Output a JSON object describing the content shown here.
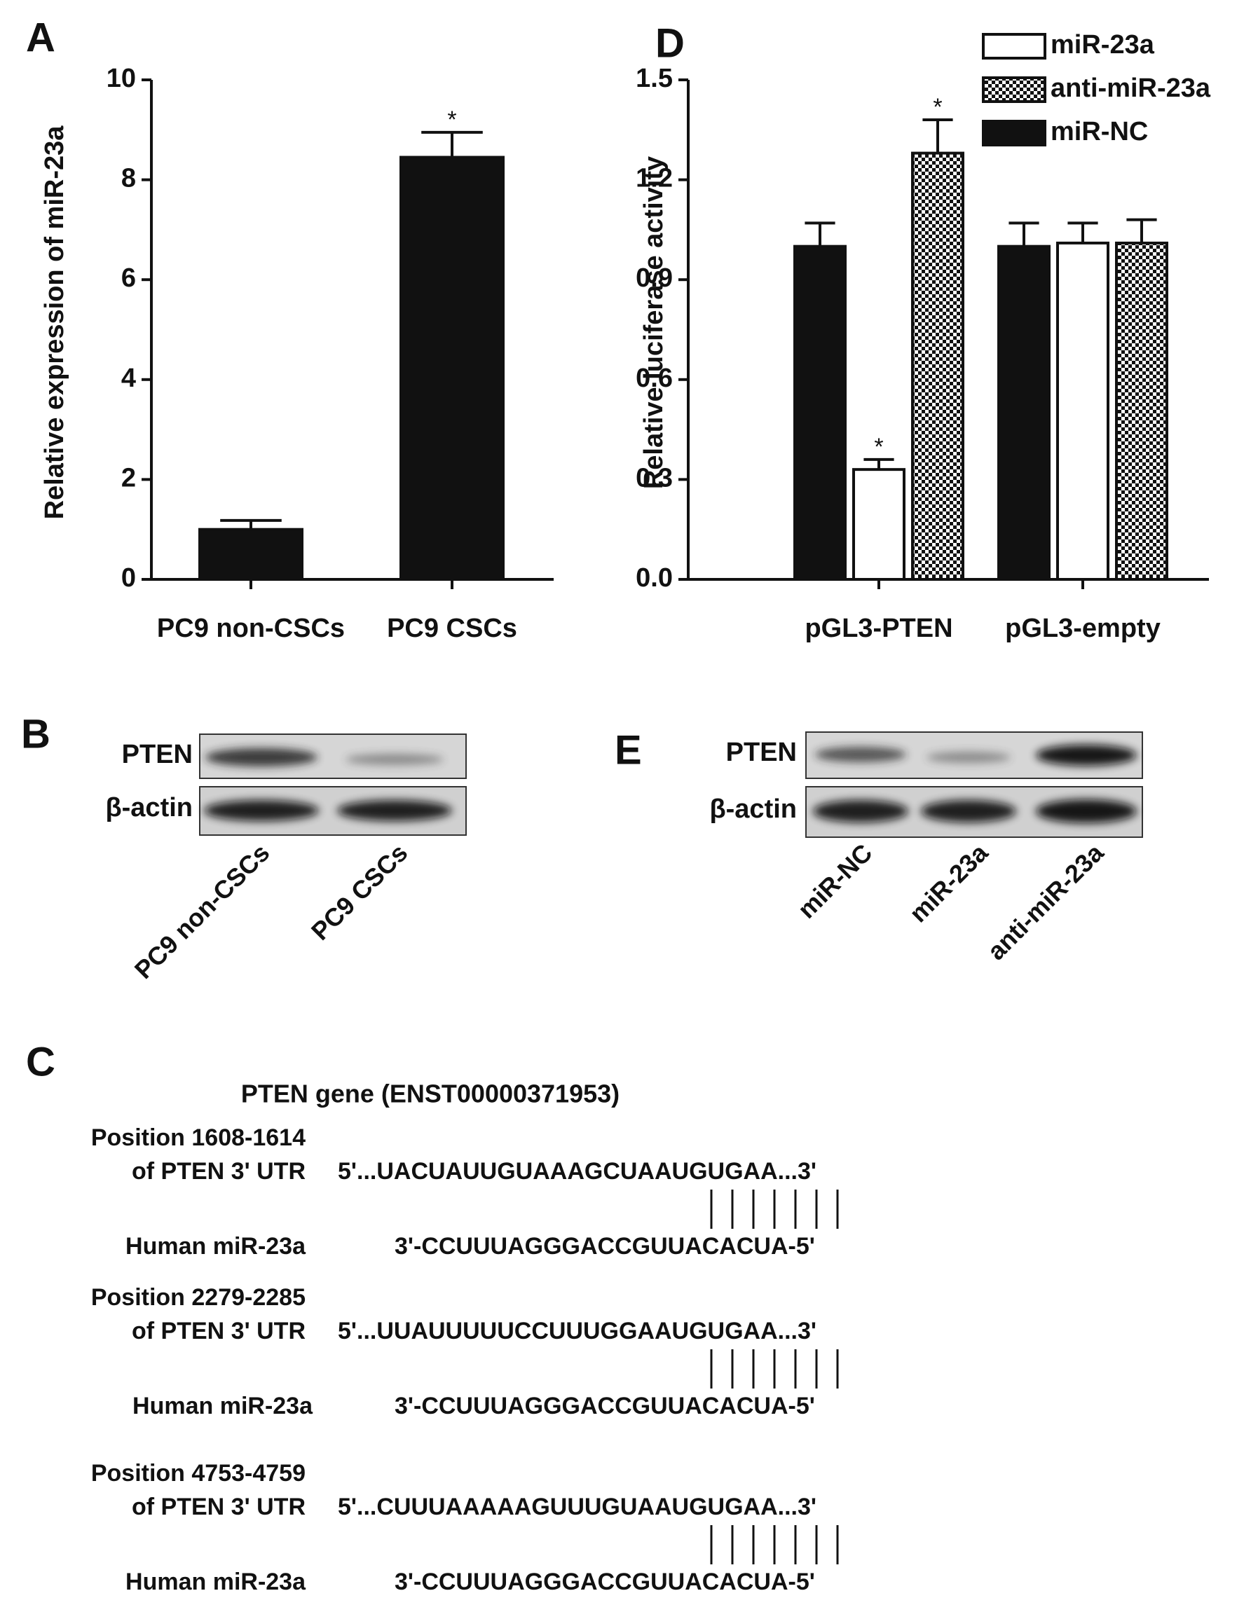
{
  "chart_data": [
    {
      "type": "bar",
      "panel": "A",
      "ylabel": "Relative expression of miR-23a",
      "categories": [
        "PC9 non-CSCs",
        "PC9 CSCs"
      ],
      "values": [
        1.0,
        8.45
      ],
      "errors": [
        0.18,
        0.5
      ],
      "markers": [
        null,
        "*"
      ],
      "color": "#111111",
      "ylim": [
        0,
        10
      ],
      "yticks": [
        0,
        2,
        4,
        6,
        8,
        10
      ],
      "grid": false
    },
    {
      "type": "bar",
      "panel": "D",
      "ylabel": "Relative luciferase activity",
      "categories": [
        "pGL3-PTEN",
        "pGL3-empty"
      ],
      "series": [
        {
          "name": "miR-23a",
          "color": "#ffffff",
          "values": [
            0.33,
            1.01
          ],
          "errors": [
            0.03,
            0.06
          ],
          "markers": [
            "*",
            null
          ]
        },
        {
          "name": "anti-miR-23a",
          "color": "checker",
          "values": [
            1.28,
            1.01
          ],
          "errors": [
            0.1,
            0.07
          ],
          "markers": [
            "*",
            null
          ]
        },
        {
          "name": "miR-NC",
          "color": "#111111",
          "values": [
            1.0,
            1.0
          ],
          "errors": [
            0.07,
            0.07
          ]
        }
      ],
      "ylim": [
        0,
        1.5
      ],
      "yticks": [
        {
          "value": 0,
          "label": "0.0"
        },
        0.3,
        0.6,
        0.9,
        1.2,
        1.5
      ],
      "grid": false,
      "legend": "top-right"
    }
  ],
  "blots": [
    {
      "panel": "B",
      "rows": [
        "PTEN",
        "β-actin"
      ],
      "lanes": [
        "PC9 non-CSCs",
        "PC9 CSCs"
      ]
    },
    {
      "panel": "E",
      "rows": [
        "PTEN",
        "β-actin"
      ],
      "lanes": [
        "miR-NC",
        "miR-23a",
        "anti-miR-23a"
      ]
    }
  ],
  "alignment": {
    "panel": "C",
    "title": "PTEN gene (ENST00000371953)",
    "entries": [
      {
        "position": "Position 1608-1614",
        "region": "of PTEN 3' UTR",
        "target": "5'...UACUAUUGUAAAGCUAAUGUGAA...3'",
        "mirna_label": "Human miR-23a",
        "mirna": "3'-CCUUUAGGGACCGUUACACUA-5'"
      },
      {
        "position": "Position 2279-2285",
        "region": "of PTEN 3' UTR",
        "target": "5'...UUAUUUUUCCUUUGGAAUGUGAA...3'",
        "mirna_label": "Human miR-23a",
        "mirna": "3'-CCUUUAGGGACCGUUACACUA-5'"
      },
      {
        "position": "Position 4753-4759",
        "region": "of PTEN 3' UTR",
        "target": "5'...CUUUAAAAAGUUUGUAAUGUGAA...3'",
        "mirna_label": "Human miR-23a",
        "mirna": "3'-CCUUUAGGGACCGUUACACUA-5'"
      }
    ]
  }
}
